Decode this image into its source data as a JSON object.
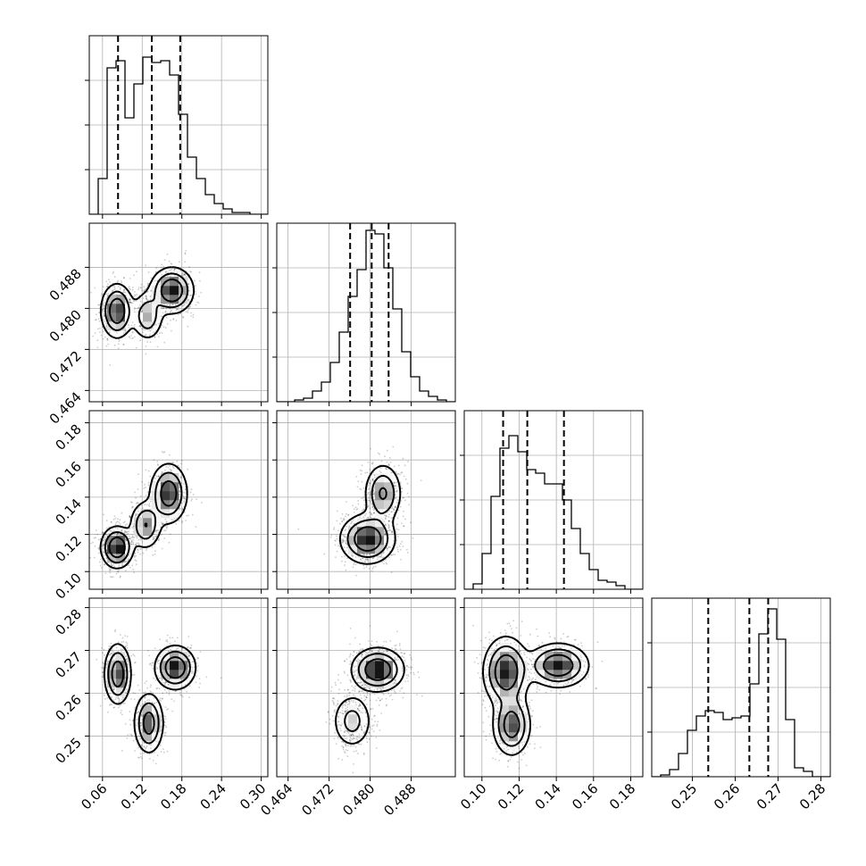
{
  "chart_data": {
    "type": "corner",
    "title": "",
    "parameters": [
      "",
      "",
      "",
      ""
    ],
    "ranges": [
      [
        0.04,
        0.31
      ],
      [
        0.4618,
        0.4966
      ],
      [
        0.0905,
        0.1865
      ],
      [
        0.2405,
        0.2822
      ]
    ],
    "ticks": [
      {
        "values": [
          0.06,
          0.12,
          0.18,
          0.24,
          0.3
        ],
        "labels": [
          "0.06",
          "0.12",
          "0.18",
          "0.24",
          "0.30"
        ]
      },
      {
        "values": [
          0.464,
          0.472,
          0.48,
          0.488
        ],
        "labels": [
          "0.464",
          "0.472",
          "0.480",
          "0.488"
        ]
      },
      {
        "values": [
          0.1,
          0.12,
          0.14,
          0.16,
          0.18
        ],
        "labels": [
          "0.10",
          "0.12",
          "0.14",
          "0.16",
          "0.18"
        ]
      },
      {
        "values": [
          0.25,
          0.26,
          0.27,
          0.28
        ],
        "labels": [
          "0.25",
          "0.26",
          "0.27",
          "0.28"
        ]
      }
    ],
    "quantiles": [
      [
        0.0835,
        0.1345,
        0.1775
      ],
      [
        0.4761,
        0.4803,
        0.4836
      ],
      [
        0.1114,
        0.1244,
        0.1441
      ],
      [
        0.2537,
        0.2633,
        0.2677
      ]
    ],
    "histograms": [
      {
        "start": 0.04,
        "bin_width": 0.0135,
        "counts": [
          0,
          0.2,
          0.82,
          0.86,
          0.54,
          0.73,
          0.88,
          0.85,
          0.86,
          0.78,
          0.56,
          0.32,
          0.2,
          0.11,
          0.06,
          0.03,
          0.01,
          0.01,
          0,
          0
        ]
      },
      {
        "start": 0.4618,
        "bin_width": 0.00174,
        "counts": [
          0,
          0,
          0.01,
          0.02,
          0.06,
          0.11,
          0.22,
          0.39,
          0.59,
          0.74,
          0.96,
          0.94,
          0.75,
          0.52,
          0.28,
          0.14,
          0.06,
          0.03,
          0.01,
          0
        ]
      },
      {
        "start": 0.0905,
        "bin_width": 0.0048,
        "counts": [
          0,
          0.03,
          0.2,
          0.52,
          0.79,
          0.86,
          0.77,
          0.67,
          0.65,
          0.59,
          0.59,
          0.5,
          0.34,
          0.2,
          0.11,
          0.05,
          0.04,
          0.02,
          0,
          0
        ]
      },
      {
        "start": 0.2405,
        "bin_width": 0.002085,
        "counts": [
          0,
          0.01,
          0.04,
          0.13,
          0.26,
          0.34,
          0.37,
          0.36,
          0.32,
          0.33,
          0.34,
          0.52,
          0.8,
          0.94,
          0.77,
          0.32,
          0.05,
          0.03,
          0,
          0
        ]
      }
    ],
    "modes_2d": {
      "1,0": [
        {
          "x": 0.082,
          "y": 0.4795,
          "sx": 0.012,
          "sy": 0.0026,
          "w": 0.38
        },
        {
          "x": 0.128,
          "y": 0.4785,
          "sx": 0.012,
          "sy": 0.0024,
          "w": 0.22
        },
        {
          "x": 0.165,
          "y": 0.4835,
          "sx": 0.016,
          "sy": 0.0022,
          "w": 0.4
        }
      ],
      "2,0": [
        {
          "x": 0.082,
          "y": 0.113,
          "sx": 0.012,
          "sy": 0.0055,
          "w": 0.4
        },
        {
          "x": 0.125,
          "y": 0.125,
          "sx": 0.012,
          "sy": 0.0065,
          "w": 0.25
        },
        {
          "x": 0.16,
          "y": 0.142,
          "sx": 0.014,
          "sy": 0.008,
          "w": 0.35
        }
      ],
      "2,1": [
        {
          "x": 0.4795,
          "y": 0.1175,
          "sx": 0.0026,
          "sy": 0.0065,
          "w": 0.6
        },
        {
          "x": 0.4825,
          "y": 0.142,
          "sx": 0.0018,
          "sy": 0.008,
          "w": 0.4
        }
      ],
      "3,0": [
        {
          "x": 0.083,
          "y": 0.2645,
          "sx": 0.01,
          "sy": 0.0035,
          "w": 0.33
        },
        {
          "x": 0.13,
          "y": 0.253,
          "sx": 0.011,
          "sy": 0.0035,
          "w": 0.3
        },
        {
          "x": 0.17,
          "y": 0.266,
          "sx": 0.015,
          "sy": 0.0025,
          "w": 0.37
        }
      ],
      "3,1": [
        {
          "x": 0.4815,
          "y": 0.2655,
          "sx": 0.0025,
          "sy": 0.0025,
          "w": 0.7
        },
        {
          "x": 0.4765,
          "y": 0.2535,
          "sx": 0.002,
          "sy": 0.0033,
          "w": 0.3
        }
      ],
      "3,2": [
        {
          "x": 0.113,
          "y": 0.265,
          "sx": 0.006,
          "sy": 0.004,
          "w": 0.35
        },
        {
          "x": 0.116,
          "y": 0.2525,
          "sx": 0.005,
          "sy": 0.0035,
          "w": 0.3
        },
        {
          "x": 0.141,
          "y": 0.2665,
          "sx": 0.008,
          "sy": 0.0025,
          "w": 0.35
        }
      ]
    },
    "grid": true,
    "legend": "none"
  }
}
